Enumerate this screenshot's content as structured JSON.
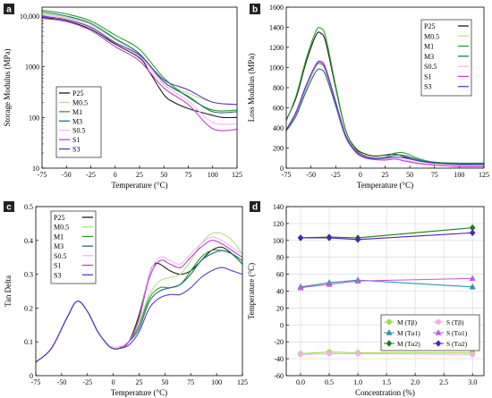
{
  "chart_data": [
    {
      "panel": "a",
      "type": "line",
      "xlabel": "Temperature (°C)",
      "ylabel": "Storage Modulus (MPa)",
      "xlim": [
        -75,
        125
      ],
      "ylim": [
        10,
        15000
      ],
      "yscale": "log",
      "xticks": [
        "-75",
        "-50",
        "-25",
        "0",
        "25",
        "50",
        "75",
        "100",
        "125"
      ],
      "yticks": [
        "10",
        "100",
        "1000",
        "10,000"
      ],
      "legend": "bottom-left",
      "series": [
        {
          "name": "P25",
          "color": "#1a1a1a",
          "x": [
            -75,
            -50,
            -25,
            0,
            25,
            35,
            50,
            60,
            75,
            100,
            110,
            125
          ],
          "y": [
            9500,
            8000,
            5500,
            2800,
            1500,
            800,
            280,
            200,
            150,
            110,
            100,
            100
          ]
        },
        {
          "name": "M0.5",
          "color": "#b8e08a",
          "x": [
            -75,
            -50,
            -25,
            0,
            25,
            50,
            75,
            100,
            125
          ],
          "y": [
            11000,
            9500,
            6800,
            3400,
            1800,
            500,
            300,
            200,
            180
          ]
        },
        {
          "name": "M1",
          "color": "#2aa02a",
          "x": [
            -75,
            -50,
            -25,
            0,
            25,
            50,
            75,
            100,
            125
          ],
          "y": [
            13000,
            11000,
            8000,
            4200,
            2200,
            600,
            250,
            140,
            140
          ]
        },
        {
          "name": "M3",
          "color": "#1f6f7a",
          "x": [
            -75,
            -50,
            -25,
            0,
            25,
            50,
            75,
            100,
            125
          ],
          "y": [
            12000,
            10000,
            7200,
            3600,
            1800,
            500,
            260,
            130,
            130
          ]
        },
        {
          "name": "S0.5",
          "color": "#f2b8f0",
          "x": [
            -75,
            -50,
            -25,
            0,
            25,
            50,
            75,
            100,
            125
          ],
          "y": [
            10500,
            9000,
            6200,
            3000,
            1600,
            450,
            210,
            80,
            75
          ]
        },
        {
          "name": "S1",
          "color": "#c040d0",
          "x": [
            -75,
            -50,
            -25,
            0,
            25,
            50,
            75,
            100,
            125
          ],
          "y": [
            9000,
            7800,
            5200,
            2500,
            1300,
            380,
            180,
            60,
            58
          ]
        },
        {
          "name": "S3",
          "color": "#5a3ac0",
          "x": [
            -75,
            -50,
            -25,
            0,
            25,
            50,
            75,
            100,
            125
          ],
          "y": [
            10000,
            8500,
            6000,
            3000,
            1700,
            550,
            350,
            200,
            180
          ]
        }
      ]
    },
    {
      "panel": "b",
      "type": "line",
      "xlabel": "Temperature (°C)",
      "ylabel": "Loss Modulus (MPa)",
      "xlim": [
        -75,
        125
      ],
      "ylim": [
        0,
        1600
      ],
      "xticks": [
        "-75",
        "-50",
        "-25",
        "0",
        "25",
        "50",
        "75",
        "100",
        "125"
      ],
      "yticks": [
        "0",
        "200",
        "400",
        "600",
        "800",
        "1000",
        "1200",
        "1400",
        "1600"
      ],
      "legend": "top-right",
      "series": [
        {
          "name": "P25",
          "color": "#1a1a1a",
          "x": [
            -75,
            -65,
            -55,
            -45,
            -40,
            -35,
            -25,
            -15,
            -5,
            5,
            15,
            25,
            35,
            45,
            60,
            75,
            100,
            125
          ],
          "y": [
            480,
            700,
            1050,
            1320,
            1340,
            1250,
            800,
            380,
            200,
            140,
            120,
            130,
            140,
            110,
            70,
            50,
            40,
            40
          ]
        },
        {
          "name": "M0.5",
          "color": "#b8e08a",
          "x": [
            -75,
            -65,
            -55,
            -45,
            -40,
            -35,
            -25,
            -15,
            -5,
            5,
            15,
            25,
            35,
            45,
            60,
            75,
            100,
            125
          ],
          "y": [
            380,
            520,
            780,
            1000,
            1030,
            960,
            650,
            330,
            180,
            120,
            100,
            100,
            130,
            120,
            80,
            55,
            45,
            45
          ]
        },
        {
          "name": "M1",
          "color": "#2aa02a",
          "x": [
            -75,
            -65,
            -55,
            -45,
            -40,
            -35,
            -25,
            -15,
            -5,
            5,
            15,
            25,
            35,
            45,
            60,
            75,
            100,
            125
          ],
          "y": [
            470,
            720,
            1080,
            1360,
            1390,
            1300,
            820,
            380,
            190,
            120,
            100,
            110,
            150,
            150,
            90,
            60,
            50,
            50
          ]
        },
        {
          "name": "M3",
          "color": "#1f6f7a",
          "x": [
            -75,
            -65,
            -55,
            -45,
            -40,
            -35,
            -25,
            -15,
            -5,
            5,
            15,
            25,
            35,
            45,
            60,
            75,
            100,
            125
          ],
          "y": [
            370,
            520,
            760,
            960,
            980,
            920,
            620,
            310,
            170,
            110,
            95,
            100,
            130,
            125,
            80,
            55,
            45,
            45
          ]
        },
        {
          "name": "S0.5",
          "color": "#f2b8f0",
          "x": [
            -75,
            -65,
            -55,
            -45,
            -40,
            -35,
            -25,
            -15,
            -5,
            5,
            15,
            25,
            35,
            45,
            60,
            75,
            100,
            125
          ],
          "y": [
            390,
            560,
            820,
            1030,
            1050,
            980,
            660,
            330,
            170,
            110,
            90,
            90,
            100,
            80,
            50,
            35,
            20,
            20
          ]
        },
        {
          "name": "S1",
          "color": "#c040d0",
          "x": [
            -75,
            -65,
            -55,
            -45,
            -40,
            -35,
            -25,
            -15,
            -5,
            5,
            15,
            25,
            35,
            45,
            60,
            75,
            100,
            125
          ],
          "y": [
            380,
            550,
            810,
            1020,
            1040,
            970,
            650,
            320,
            160,
            100,
            85,
            80,
            90,
            70,
            45,
            30,
            15,
            15
          ]
        },
        {
          "name": "S3",
          "color": "#5a3ac0",
          "x": [
            -75,
            -65,
            -55,
            -45,
            -40,
            -35,
            -25,
            -15,
            -5,
            5,
            15,
            25,
            35,
            45,
            60,
            75,
            100,
            125
          ],
          "y": [
            380,
            560,
            820,
            1030,
            1060,
            990,
            660,
            330,
            170,
            110,
            95,
            100,
            110,
            100,
            70,
            50,
            35,
            35
          ]
        }
      ]
    },
    {
      "panel": "c",
      "type": "line",
      "xlabel": "Temperature (°C)",
      "ylabel": "Tan Delta",
      "xlim": [
        -75,
        125
      ],
      "ylim": [
        0,
        0.5
      ],
      "xticks": [
        "-75",
        "-50",
        "-25",
        "0",
        "25",
        "50",
        "75",
        "100",
        "125"
      ],
      "yticks": [
        "0",
        "0.1",
        "0.2",
        "0.3",
        "0.4",
        "0.5"
      ],
      "legend": "top-left",
      "series": [
        {
          "name": "P25",
          "color": "#1a1a1a",
          "x": [
            -75,
            -60,
            -45,
            -35,
            -25,
            -15,
            -5,
            0,
            5,
            15,
            25,
            35,
            40,
            45,
            55,
            65,
            75,
            85,
            95,
            105,
            115,
            125
          ],
          "y": [
            0.04,
            0.08,
            0.17,
            0.22,
            0.19,
            0.13,
            0.09,
            0.08,
            0.08,
            0.1,
            0.18,
            0.3,
            0.33,
            0.33,
            0.31,
            0.3,
            0.31,
            0.34,
            0.37,
            0.38,
            0.36,
            0.33
          ]
        },
        {
          "name": "M0.5",
          "color": "#b8e08a",
          "x": [
            -75,
            -60,
            -45,
            -35,
            -25,
            -15,
            -5,
            0,
            5,
            15,
            25,
            35,
            45,
            55,
            65,
            75,
            85,
            95,
            105,
            115,
            125
          ],
          "y": [
            0.04,
            0.08,
            0.17,
            0.22,
            0.19,
            0.13,
            0.09,
            0.085,
            0.085,
            0.1,
            0.16,
            0.24,
            0.28,
            0.29,
            0.3,
            0.34,
            0.39,
            0.42,
            0.42,
            0.4,
            0.36
          ]
        },
        {
          "name": "M1",
          "color": "#2aa02a",
          "x": [
            -75,
            -60,
            -45,
            -35,
            -25,
            -15,
            -5,
            0,
            5,
            15,
            25,
            35,
            45,
            55,
            65,
            75,
            85,
            95,
            105,
            115,
            125
          ],
          "y": [
            0.04,
            0.08,
            0.17,
            0.22,
            0.19,
            0.13,
            0.09,
            0.08,
            0.08,
            0.1,
            0.15,
            0.23,
            0.26,
            0.26,
            0.27,
            0.31,
            0.35,
            0.37,
            0.37,
            0.36,
            0.33
          ]
        },
        {
          "name": "M3",
          "color": "#1f6f7a",
          "x": [
            -75,
            -60,
            -45,
            -35,
            -25,
            -15,
            -5,
            0,
            5,
            15,
            25,
            35,
            45,
            55,
            65,
            75,
            85,
            95,
            105,
            115,
            125
          ],
          "y": [
            0.04,
            0.08,
            0.17,
            0.22,
            0.19,
            0.13,
            0.09,
            0.08,
            0.08,
            0.1,
            0.14,
            0.22,
            0.25,
            0.26,
            0.27,
            0.3,
            0.34,
            0.36,
            0.37,
            0.36,
            0.34
          ]
        },
        {
          "name": "S0.5",
          "color": "#f2b8f0",
          "x": [
            -75,
            -60,
            -45,
            -35,
            -25,
            -15,
            -5,
            0,
            5,
            15,
            25,
            35,
            45,
            55,
            65,
            75,
            85,
            95,
            105,
            115,
            125
          ],
          "y": [
            0.04,
            0.08,
            0.17,
            0.22,
            0.19,
            0.13,
            0.09,
            0.085,
            0.085,
            0.1,
            0.17,
            0.3,
            0.35,
            0.34,
            0.33,
            0.36,
            0.39,
            0.41,
            0.4,
            0.38,
            0.36
          ]
        },
        {
          "name": "S1",
          "color": "#c040d0",
          "x": [
            -75,
            -60,
            -45,
            -35,
            -25,
            -15,
            -5,
            0,
            5,
            15,
            25,
            35,
            45,
            55,
            65,
            75,
            85,
            95,
            105,
            115,
            125
          ],
          "y": [
            0.04,
            0.08,
            0.17,
            0.22,
            0.19,
            0.13,
            0.09,
            0.08,
            0.08,
            0.1,
            0.17,
            0.29,
            0.34,
            0.33,
            0.32,
            0.35,
            0.38,
            0.4,
            0.39,
            0.37,
            0.35
          ]
        },
        {
          "name": "S3",
          "color": "#5a3ac0",
          "x": [
            -75,
            -60,
            -45,
            -35,
            -25,
            -15,
            -5,
            0,
            5,
            15,
            25,
            35,
            45,
            55,
            65,
            75,
            85,
            95,
            105,
            115,
            125
          ],
          "y": [
            0.04,
            0.08,
            0.17,
            0.22,
            0.19,
            0.13,
            0.09,
            0.08,
            0.08,
            0.09,
            0.13,
            0.2,
            0.23,
            0.24,
            0.24,
            0.26,
            0.29,
            0.31,
            0.32,
            0.31,
            0.3
          ]
        }
      ]
    },
    {
      "panel": "d",
      "type": "line",
      "xlabel": "Concentration (%)",
      "ylabel": "Temperature (°C)",
      "xlim": [
        -0.25,
        3.2
      ],
      "ylim": [
        -60,
        140
      ],
      "grid": true,
      "xticks": [
        "0.0",
        "0.5",
        "1.0",
        "1.5",
        "2.0",
        "2.5",
        "3.0"
      ],
      "yticks": [
        "-60",
        "-40",
        "-20",
        "0",
        "20",
        "40",
        "60",
        "80",
        "100",
        "120",
        "140"
      ],
      "legend": "bottom-center",
      "series": [
        {
          "name": "M (Tβ)",
          "color": "#9adf4a",
          "marker": "circle",
          "x": [
            0,
            0.5,
            1.0,
            3.0
          ],
          "y": [
            -34,
            -32,
            -33,
            -33
          ]
        },
        {
          "name": "M (Tα1)",
          "color": "#2a9aa8",
          "marker": "triangle",
          "x": [
            0,
            0.5,
            1.0,
            3.0
          ],
          "y": [
            45,
            50,
            53,
            45
          ]
        },
        {
          "name": "M (Tα2)",
          "color": "#1a7a1a",
          "marker": "diamond",
          "x": [
            0,
            0.5,
            1.0,
            3.0
          ],
          "y": [
            103,
            104,
            103,
            115
          ]
        },
        {
          "name": "S (Tβ)",
          "color": "#f0b0e8",
          "marker": "circle",
          "x": [
            0,
            0.5,
            1.0,
            3.0
          ],
          "y": [
            -35,
            -34,
            -34,
            -35
          ]
        },
        {
          "name": "S (Tα1)",
          "color": "#c060d8",
          "marker": "triangle",
          "x": [
            0,
            0.5,
            1.0,
            3.0
          ],
          "y": [
            44,
            48,
            52,
            55
          ]
        },
        {
          "name": "S (Tα2)",
          "color": "#5020c0",
          "marker": "diamond",
          "x": [
            0,
            0.5,
            1.0,
            3.0
          ],
          "y": [
            103,
            103,
            101,
            109
          ]
        }
      ]
    }
  ]
}
